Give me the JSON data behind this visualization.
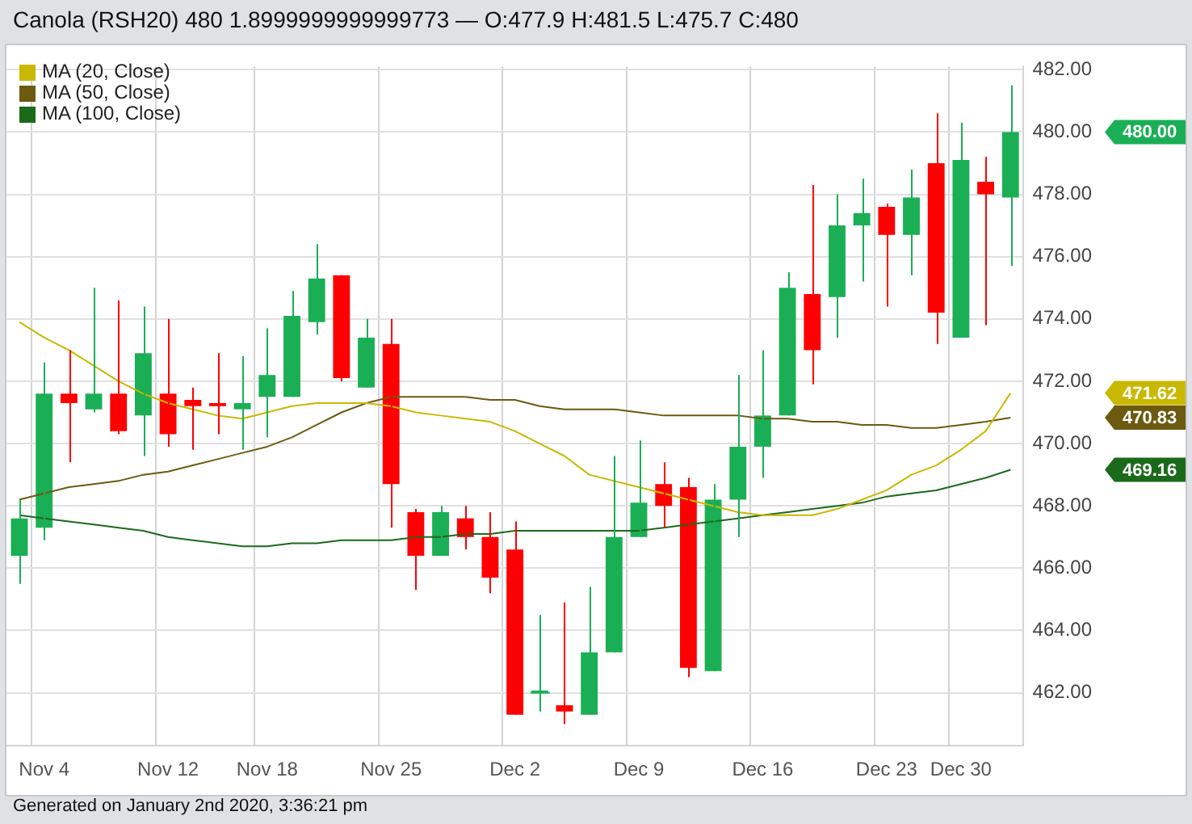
{
  "chart_data": {
    "type": "candlestick",
    "title": "Canola (RSH20) 480 1.8999999999999773 — O:477.9 H:481.5 L:475.7 C:480",
    "categories": [
      null,
      "Nov 4",
      null,
      null,
      null,
      null,
      "Nov 12",
      null,
      null,
      null,
      "Nov 18",
      null,
      null,
      null,
      null,
      "Nov 25",
      null,
      null,
      null,
      null,
      "Dec 2",
      null,
      null,
      null,
      null,
      "Dec 9",
      null,
      null,
      null,
      null,
      "Dec 16",
      null,
      null,
      null,
      null,
      "Dec 23",
      null,
      null,
      "Dec 30",
      null,
      null
    ],
    "ohlc": [
      [
        466.4,
        468.2,
        465.5,
        467.6
      ],
      [
        467.3,
        472.6,
        466.9,
        471.6
      ],
      [
        471.6,
        473.0,
        469.4,
        471.3
      ],
      [
        471.1,
        475.0,
        471.0,
        471.6
      ],
      [
        471.6,
        474.6,
        470.3,
        470.4
      ],
      [
        470.9,
        474.4,
        469.6,
        472.9
      ],
      [
        471.6,
        474.0,
        469.9,
        470.3
      ],
      [
        471.4,
        471.8,
        469.8,
        471.2
      ],
      [
        471.3,
        472.9,
        470.3,
        471.2
      ],
      [
        471.1,
        472.8,
        469.8,
        471.3
      ],
      [
        471.5,
        473.7,
        470.2,
        472.2
      ],
      [
        471.5,
        474.9,
        471.5,
        474.1
      ],
      [
        473.9,
        476.4,
        473.5,
        475.3
      ],
      [
        475.4,
        475.4,
        472.0,
        472.1
      ],
      [
        471.8,
        474.0,
        471.8,
        473.4
      ],
      [
        473.2,
        474.0,
        467.3,
        468.7
      ],
      [
        467.8,
        467.9,
        465.3,
        466.4
      ],
      [
        466.4,
        468.0,
        466.4,
        467.8
      ],
      [
        467.6,
        468.0,
        466.6,
        467.0
      ],
      [
        467.0,
        467.8,
        465.2,
        465.7
      ],
      [
        466.6,
        467.5,
        461.3,
        461.3
      ],
      [
        462.0,
        464.5,
        461.4,
        462.0
      ],
      [
        461.6,
        464.9,
        461.0,
        461.4
      ],
      [
        461.3,
        465.4,
        461.3,
        463.3
      ],
      [
        463.3,
        469.6,
        463.3,
        467.0
      ],
      [
        467.0,
        470.1,
        467.0,
        468.1
      ],
      [
        468.7,
        469.4,
        467.3,
        468.0
      ],
      [
        468.6,
        468.9,
        462.5,
        462.8
      ],
      [
        462.7,
        468.7,
        462.7,
        468.2
      ],
      [
        468.2,
        472.2,
        467.0,
        469.9
      ],
      [
        469.9,
        473.0,
        468.9,
        470.9
      ],
      [
        470.9,
        475.5,
        470.9,
        475.0
      ],
      [
        474.8,
        478.3,
        471.9,
        473.0
      ],
      [
        474.7,
        478.0,
        473.4,
        477.0
      ],
      [
        477.0,
        478.5,
        475.2,
        477.4
      ],
      [
        477.6,
        477.7,
        474.4,
        476.7
      ],
      [
        476.7,
        478.8,
        475.4,
        477.9
      ],
      [
        479.0,
        480.6,
        473.2,
        474.2
      ],
      [
        473.4,
        480.3,
        473.4,
        479.1
      ],
      [
        478.4,
        479.2,
        473.8,
        478.0
      ],
      [
        477.9,
        481.5,
        475.7,
        480
      ]
    ],
    "colors": [
      "#1aaf54",
      "#1aaf54",
      "#ff0000",
      "#1aaf54",
      "#ff0000",
      "#1aaf54",
      "#ff0000",
      "#ff0000",
      "#ff0000",
      "#1aaf54",
      "#1aaf54",
      "#1aaf54",
      "#1aaf54",
      "#ff0000",
      "#1aaf54",
      "#ff0000",
      "#ff0000",
      "#1aaf54",
      "#ff0000",
      "#ff0000",
      "#ff0000",
      "#1aaf54",
      "#ff0000",
      "#1aaf54",
      "#1aaf54",
      "#1aaf54",
      "#ff0000",
      "#ff0000",
      "#1aaf54",
      "#1aaf54",
      "#1aaf54",
      "#1aaf54",
      "#ff0000",
      "#1aaf54",
      "#1aaf54",
      "#ff0000",
      "#1aaf54",
      "#ff0000",
      "#1aaf54",
      "#ff0000",
      "#1aaf54"
    ],
    "series": [
      {
        "type": "line",
        "name": "MA (20, Close)",
        "color": "#c9b800",
        "values": [
          473.9,
          473.4,
          473.0,
          472.5,
          472.0,
          471.6,
          471.3,
          471.1,
          470.9,
          470.8,
          471.0,
          471.2,
          471.3,
          471.3,
          471.3,
          471.2,
          471.0,
          470.9,
          470.8,
          470.7,
          470.4,
          470.0,
          469.6,
          469.0,
          468.8,
          468.6,
          468.4,
          468.2,
          468.0,
          467.8,
          467.7,
          467.7,
          467.7,
          467.9,
          468.2,
          468.5,
          469.0,
          469.3,
          469.8,
          470.4,
          471.62
        ]
      },
      {
        "type": "line",
        "name": "MA (50, Close)",
        "color": "#6b5a10",
        "values": [
          468.2,
          468.4,
          468.6,
          468.7,
          468.8,
          469.0,
          469.1,
          469.3,
          469.5,
          469.7,
          469.9,
          470.2,
          470.6,
          471.0,
          471.3,
          471.5,
          471.5,
          471.5,
          471.5,
          471.4,
          471.4,
          471.2,
          471.1,
          471.1,
          471.1,
          471.0,
          470.9,
          470.9,
          470.9,
          470.9,
          470.8,
          470.8,
          470.7,
          470.7,
          470.6,
          470.6,
          470.5,
          470.5,
          470.6,
          470.7,
          470.83
        ]
      },
      {
        "type": "line",
        "name": "MA (100, Close)",
        "color": "#1b6a1b",
        "values": [
          467.7,
          467.6,
          467.5,
          467.4,
          467.3,
          467.2,
          467.0,
          466.9,
          466.8,
          466.7,
          466.7,
          466.8,
          466.8,
          466.9,
          466.9,
          466.9,
          467.0,
          467.0,
          467.1,
          467.1,
          467.2,
          467.2,
          467.2,
          467.2,
          467.2,
          467.2,
          467.3,
          467.4,
          467.5,
          467.6,
          467.7,
          467.8,
          467.9,
          468.0,
          468.1,
          468.3,
          468.4,
          468.5,
          468.7,
          468.9,
          469.16
        ]
      }
    ],
    "ylim": [
      460.3,
      482.1
    ],
    "yticks": [
      {
        "value": 462,
        "label": "462.00"
      },
      {
        "value": 464,
        "label": "464.00"
      },
      {
        "value": 466,
        "label": "466.00"
      },
      {
        "value": 468,
        "label": "468.00"
      },
      {
        "value": 470,
        "label": "470.00"
      },
      {
        "value": 472,
        "label": "472.00"
      },
      {
        "value": 474,
        "label": "474.00"
      },
      {
        "value": 476,
        "label": "476.00"
      },
      {
        "value": 478,
        "label": "478.00"
      },
      {
        "value": 480,
        "label": "480.00"
      },
      {
        "value": 482,
        "label": "482.00"
      }
    ],
    "annotations": [
      "Generated on January 2nd 2020, 3:36:21 pm",
      "480.00",
      "471.62",
      "470.83",
      "469.16"
    ],
    "grid": true,
    "legend": "top left",
    "marker": "none",
    "line_style": "solid"
  }
}
